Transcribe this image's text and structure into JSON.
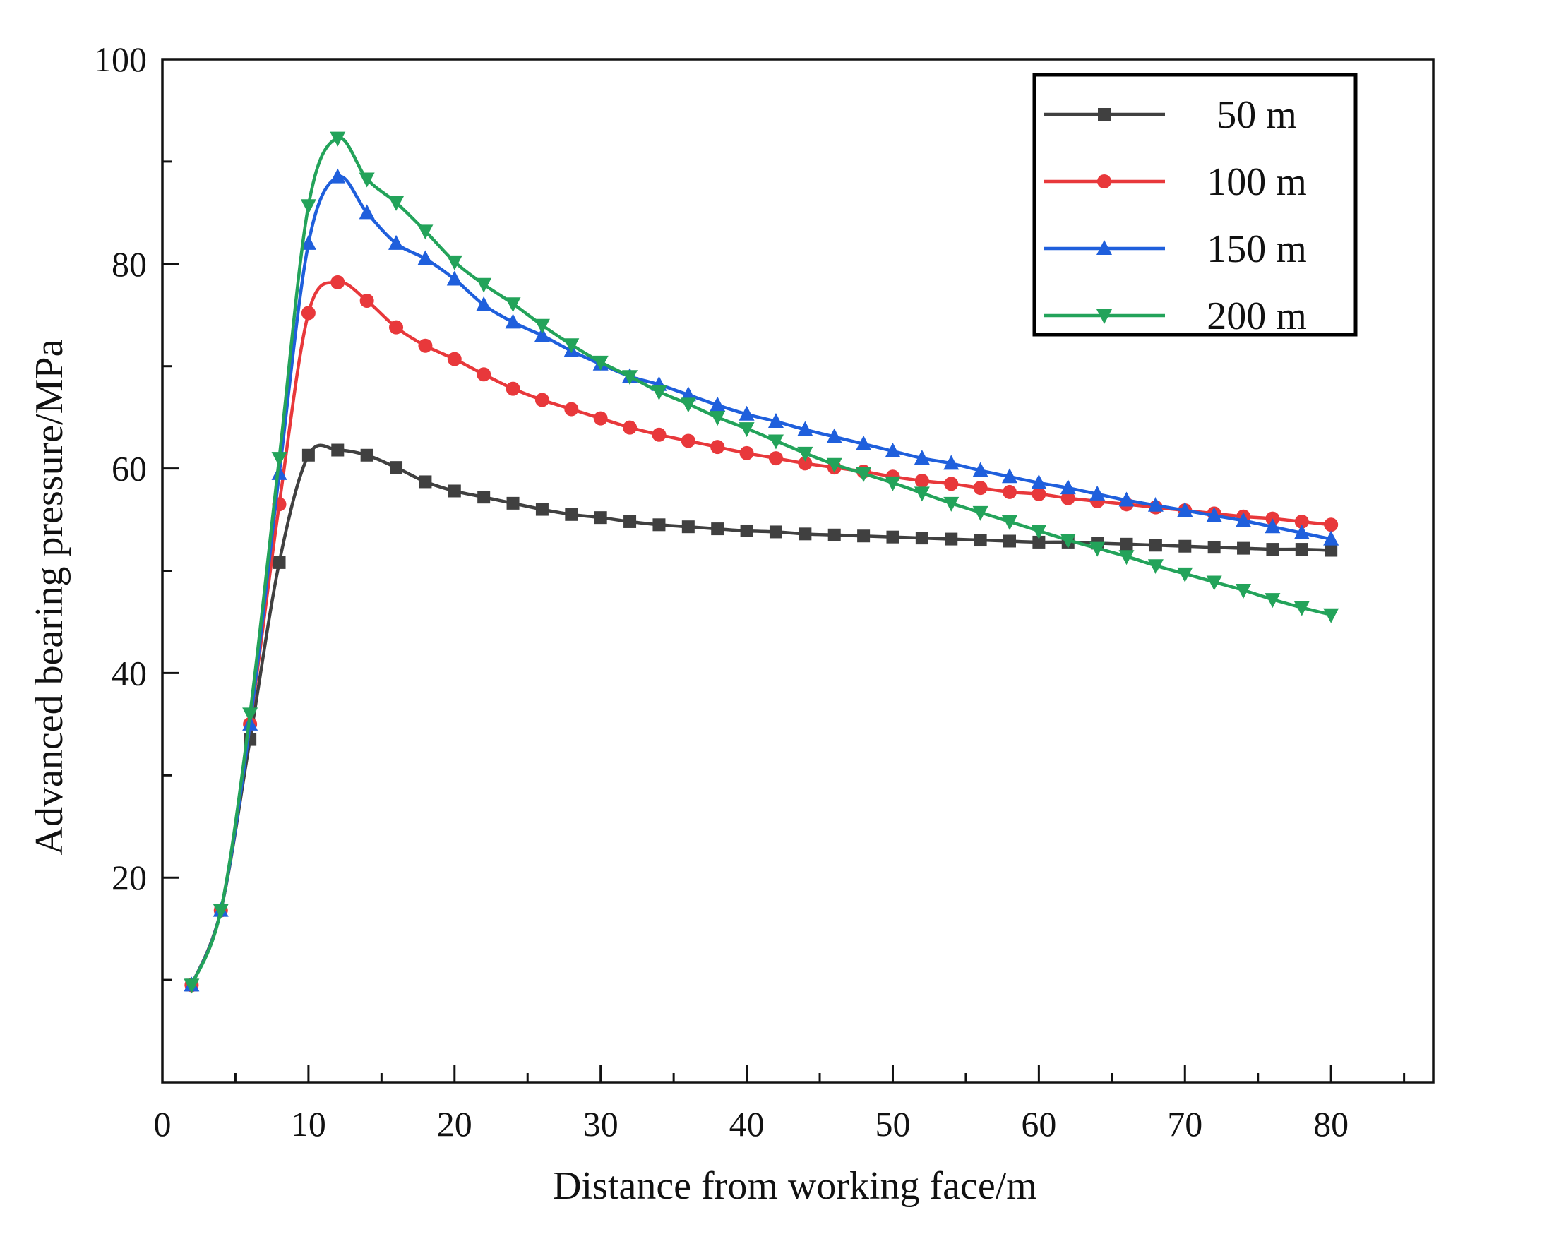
{
  "chart_data": {
    "type": "line",
    "title": "",
    "xlabel": "Distance from working face/m",
    "ylabel": "Advanced bearing pressure/MPa",
    "xlim": [
      0,
      87
    ],
    "ylim": [
      0,
      100
    ],
    "x_ticks": [
      0,
      10,
      20,
      30,
      40,
      50,
      60,
      70,
      80
    ],
    "x_tick_labels": [
      "0",
      "10",
      "20",
      "30",
      "40",
      "50",
      "60",
      "70",
      "80"
    ],
    "y_ticks": [
      20,
      40,
      60,
      80,
      100
    ],
    "y_tick_labels": [
      "20",
      "40",
      "60",
      "80",
      "100"
    ],
    "grid": false,
    "legend_position": "top-right",
    "x": [
      2,
      4,
      6,
      8,
      10,
      12,
      14,
      16,
      18,
      20,
      22,
      24,
      26,
      28,
      30,
      32,
      34,
      36,
      38,
      40,
      42,
      44,
      46,
      48,
      50,
      52,
      54,
      56,
      58,
      60,
      62,
      64,
      66,
      68,
      70,
      72,
      74,
      76,
      78,
      80
    ],
    "series": [
      {
        "name": "50 m",
        "color": "#404040",
        "marker": "square",
        "values": [
          9.5,
          16.8,
          33.5,
          50.8,
          61.3,
          61.8,
          61.3,
          60.1,
          58.7,
          57.8,
          57.2,
          56.6,
          56.0,
          55.5,
          55.2,
          54.8,
          54.5,
          54.3,
          54.1,
          53.9,
          53.8,
          53.6,
          53.5,
          53.4,
          53.3,
          53.2,
          53.1,
          53.0,
          52.9,
          52.8,
          52.8,
          52.7,
          52.6,
          52.5,
          52.4,
          52.3,
          52.2,
          52.1,
          52.1,
          52.0
        ]
      },
      {
        "name": "100 m",
        "color": "#e8383b",
        "marker": "circle",
        "values": [
          9.5,
          16.8,
          35.0,
          56.5,
          75.2,
          78.2,
          76.4,
          73.8,
          72.0,
          70.7,
          69.2,
          67.8,
          66.7,
          65.8,
          64.9,
          64.0,
          63.3,
          62.7,
          62.1,
          61.5,
          61.0,
          60.5,
          60.1,
          59.7,
          59.2,
          58.8,
          58.5,
          58.1,
          57.7,
          57.5,
          57.1,
          56.8,
          56.5,
          56.2,
          55.9,
          55.6,
          55.3,
          55.1,
          54.8,
          54.5
        ]
      },
      {
        "name": "150 m",
        "color": "#1f5fdc",
        "marker": "triangle-up",
        "values": [
          9.5,
          16.8,
          35.0,
          59.5,
          82.0,
          88.5,
          85.0,
          82.0,
          80.5,
          78.5,
          76.0,
          74.3,
          73.0,
          71.5,
          70.2,
          69.0,
          68.2,
          67.2,
          66.2,
          65.3,
          64.6,
          63.8,
          63.1,
          62.4,
          61.7,
          61.0,
          60.5,
          59.8,
          59.2,
          58.6,
          58.1,
          57.5,
          56.9,
          56.4,
          55.9,
          55.4,
          54.9,
          54.3,
          53.7,
          53.1
        ]
      },
      {
        "name": "200 m",
        "color": "#23a35a",
        "marker": "triangle-down",
        "values": [
          9.5,
          16.8,
          36.0,
          61.0,
          85.7,
          92.3,
          88.3,
          86.0,
          83.2,
          80.2,
          78.0,
          76.1,
          74.0,
          72.1,
          70.4,
          69.0,
          67.5,
          66.3,
          65.0,
          63.9,
          62.7,
          61.5,
          60.4,
          59.5,
          58.6,
          57.6,
          56.6,
          55.7,
          54.8,
          53.9,
          53.0,
          52.2,
          51.4,
          50.5,
          49.7,
          48.9,
          48.1,
          47.2,
          46.4,
          45.7
        ]
      }
    ]
  }
}
